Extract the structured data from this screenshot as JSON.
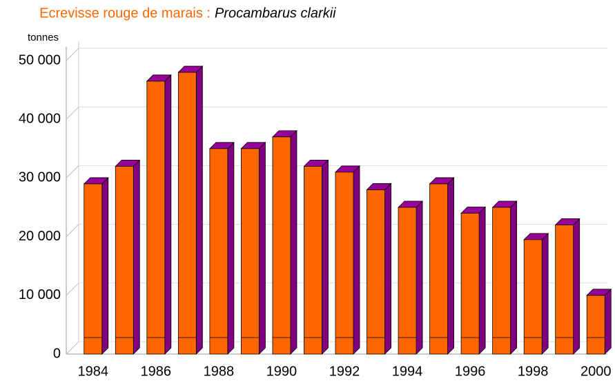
{
  "chart_data": {
    "type": "bar3d",
    "title": "Ecrevisse rouge de marais :",
    "title_italic": "Procambarus clarkii",
    "y_label": "tonnes",
    "categories": [
      "1984",
      null,
      "1986",
      null,
      "1988",
      null,
      "1990",
      null,
      "1992",
      null,
      "1994",
      null,
      "1996",
      null,
      "1998",
      null,
      "2000"
    ],
    "values": [
      29000,
      32000,
      46500,
      48000,
      35000,
      35000,
      37000,
      32000,
      31000,
      28000,
      25000,
      29000,
      24000,
      25000,
      19500,
      22000,
      10000
    ],
    "color": "#ff6600",
    "side_color": "#800080",
    "top_color": "#990099",
    "ylim": [
      0,
      50000
    ],
    "yticks": [
      0,
      {
        "value": 10000,
        "label": "10 000"
      },
      {
        "value": 20000,
        "label": "20 000"
      },
      {
        "value": 30000,
        "label": "30 000"
      },
      {
        "value": 40000,
        "label": "40 000"
      },
      {
        "value": 50000,
        "label": "50 000"
      }
    ],
    "grid": true
  }
}
